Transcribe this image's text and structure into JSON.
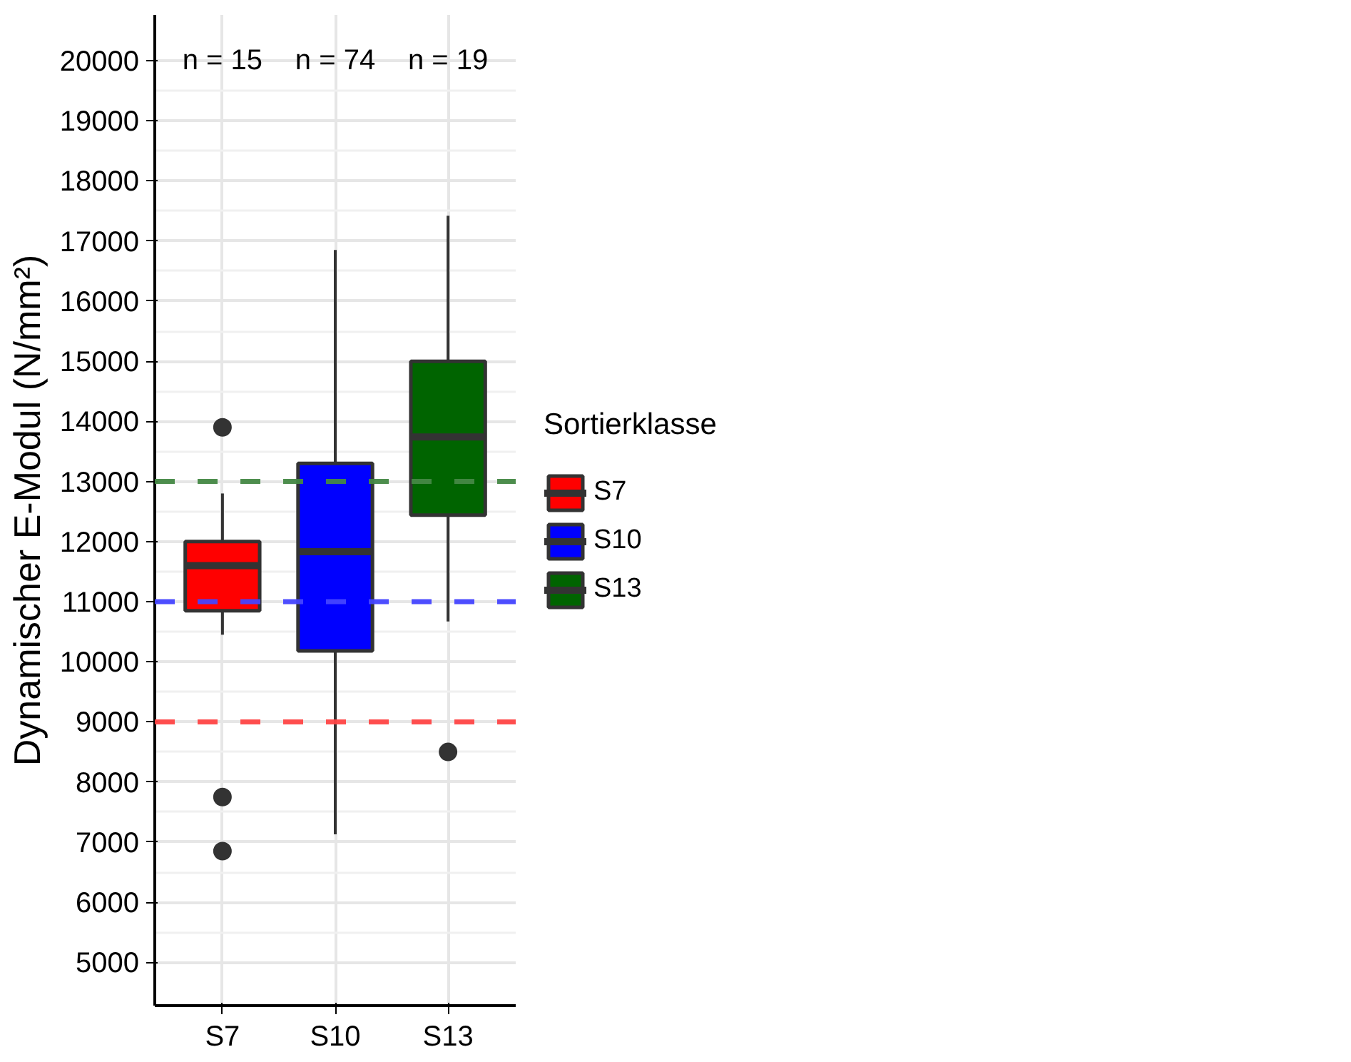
{
  "chart_data": {
    "type": "box",
    "ylabel": "Dynamischer E-Modul (N/mm²)",
    "legend_title": "Sortierklasse",
    "categories": [
      "S7",
      "S10",
      "S13"
    ],
    "series": [
      {
        "name": "S7",
        "color": "#ff0000",
        "boxes": [
          {
            "low": 10450,
            "q1": 10850,
            "median": 11600,
            "q3": 12000,
            "high": 12800,
            "outliers": [
              13900,
              7750,
              6850
            ]
          },
          null,
          null
        ]
      },
      {
        "name": "S10",
        "color": "#0000ff",
        "boxes": [
          null,
          {
            "low": 7130,
            "q1": 10180,
            "median": 11830,
            "q3": 13300,
            "high": 16850
          },
          null
        ]
      },
      {
        "name": "S13",
        "color": "#006400",
        "boxes": [
          null,
          null,
          {
            "low": 10670,
            "q1": 12440,
            "median": 13740,
            "q3": 15000,
            "high": 17420,
            "outliers": [
              8500
            ]
          }
        ]
      }
    ],
    "ylim": [
      4280,
      20760
    ],
    "yticks": [
      5000,
      6000,
      7000,
      8000,
      9000,
      10000,
      11000,
      12000,
      13000,
      14000,
      15000,
      16000,
      17000,
      18000,
      19000,
      20000
    ],
    "ref_lines": [
      {
        "axis": "y",
        "value": 9000,
        "label": null,
        "color": "#ff4444",
        "line_style": "dashed"
      },
      {
        "axis": "y",
        "value": 11000,
        "label": null,
        "color": "#4444ff",
        "line_style": "dashed"
      },
      {
        "axis": "y",
        "value": 13000,
        "label": null,
        "color": "#448844",
        "line_style": "dashed"
      }
    ],
    "annotations": [
      "n = 15",
      "n = 74",
      "n = 19"
    ],
    "grid": true,
    "legend": "right"
  }
}
